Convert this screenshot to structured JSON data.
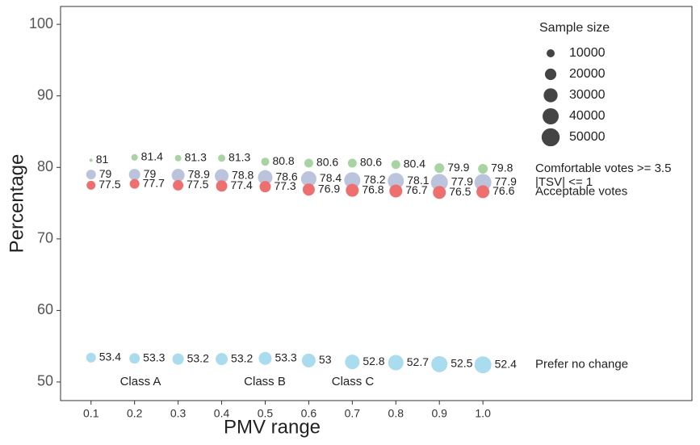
{
  "chart_data": {
    "type": "bubble",
    "x_label": "PMV range",
    "y_label": "Percentage",
    "x": [
      0.1,
      0.2,
      0.3,
      0.4,
      0.5,
      0.6,
      0.7,
      0.8,
      0.9,
      1.0
    ],
    "xlim": [
      0.03,
      1.48
    ],
    "xticks": [
      0.1,
      0.2,
      0.3,
      0.4,
      0.5,
      0.6,
      0.7,
      0.8,
      0.9,
      {
        "value": 1.0,
        "label": "1.0"
      }
    ],
    "ylim": [
      47.4,
      102.5
    ],
    "yticks": [
      50,
      60,
      70,
      80,
      90,
      100
    ],
    "series": [
      {
        "name": "Comfortable votes >= 3.5",
        "color": "#a8d4a2",
        "values": [
          81,
          81.4,
          81.3,
          81.3,
          80.8,
          80.6,
          80.6,
          80.4,
          79.9,
          79.8
        ],
        "sizes": [
          1600,
          6400,
          6400,
          8100,
          10000,
          12100,
          12100,
          12100,
          14400,
          14400
        ]
      },
      {
        "name": "|TSV| <= 1",
        "color": "#bac4dc",
        "values": [
          79,
          79,
          78.9,
          78.8,
          78.6,
          78.4,
          78.2,
          78.1,
          77.9,
          77.9
        ],
        "sizes": [
          14400,
          19600,
          25600,
          28900,
          32400,
          36100,
          40000,
          40000,
          44100,
          44100
        ]
      },
      {
        "name": "Acceptable votes",
        "color": "#ef6f6f",
        "values": [
          77.5,
          77.7,
          77.5,
          77.4,
          77.3,
          76.9,
          76.8,
          76.7,
          76.5,
          76.6
        ],
        "sizes": [
          12100,
          14400,
          16900,
          19600,
          19600,
          22500,
          25600,
          25600,
          25600,
          25600
        ]
      },
      {
        "name": "Prefer no change",
        "color": "#a8dcee",
        "values": [
          53.4,
          53.3,
          53.2,
          53.2,
          53.3,
          53,
          52.8,
          52.7,
          52.5,
          52.4
        ],
        "sizes": [
          14400,
          16900,
          19600,
          22500,
          25600,
          28900,
          32400,
          36100,
          40000,
          44100
        ]
      }
    ],
    "size_legend": {
      "title": "Sample size",
      "values": [
        10000,
        20000,
        30000,
        40000,
        50000
      ]
    },
    "annotations": [
      "Class A",
      "Class B",
      "Class C"
    ]
  }
}
